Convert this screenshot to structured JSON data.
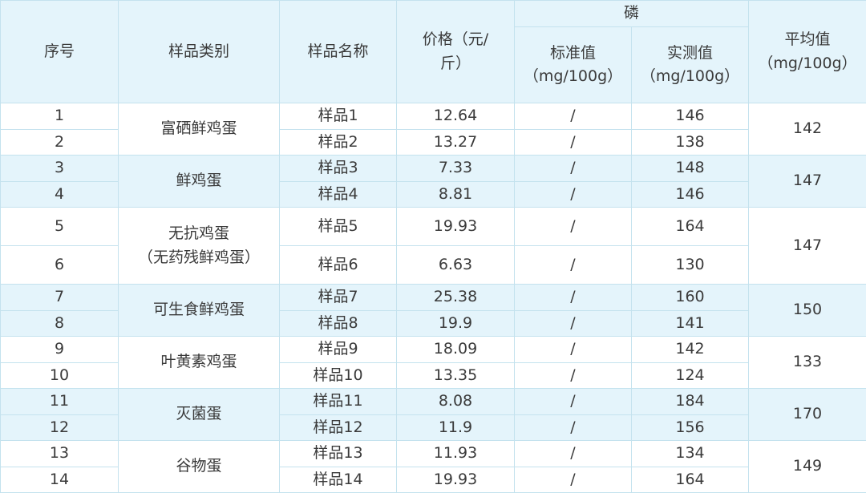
{
  "header": {
    "no": "序号",
    "category": "样品类别",
    "name": "样品名称",
    "price": [
      "价格（元/",
      "斤）"
    ],
    "phosphorus": "磷",
    "standard": [
      "标准值",
      "（mg/100g）"
    ],
    "measured": [
      "实测值",
      "（mg/100g）"
    ],
    "average": [
      "平均值",
      "（mg/100g）"
    ]
  },
  "table": {
    "groups": [
      {
        "category": [
          "富硒鲜鸡蛋"
        ],
        "average": 142,
        "samples": [
          {
            "no": 1,
            "name": "样品1",
            "price": 12.64,
            "standard": "/",
            "measured": 146
          },
          {
            "no": 2,
            "name": "样品2",
            "price": 13.27,
            "standard": "/",
            "measured": 138
          }
        ]
      },
      {
        "category": [
          "鲜鸡蛋"
        ],
        "average": 147,
        "samples": [
          {
            "no": 3,
            "name": "样品3",
            "price": 7.33,
            "standard": "/",
            "measured": 148
          },
          {
            "no": 4,
            "name": "样品4",
            "price": 8.81,
            "standard": "/",
            "measured": 146
          }
        ]
      },
      {
        "category": [
          "无抗鸡蛋",
          "（无药残鲜鸡蛋）"
        ],
        "average": 147,
        "samples": [
          {
            "no": 5,
            "name": "样品5",
            "price": 19.93,
            "standard": "/",
            "measured": 164
          },
          {
            "no": 6,
            "name": "样品6",
            "price": 6.63,
            "standard": "/",
            "measured": 130
          }
        ]
      },
      {
        "category": [
          "可生食鲜鸡蛋"
        ],
        "average": 150,
        "samples": [
          {
            "no": 7,
            "name": "样品7",
            "price": 25.38,
            "standard": "/",
            "measured": 160
          },
          {
            "no": 8,
            "name": "样品8",
            "price": 19.9,
            "standard": "/",
            "measured": 141
          }
        ]
      },
      {
        "category": [
          "叶黄素鸡蛋"
        ],
        "average": 133,
        "samples": [
          {
            "no": 9,
            "name": "样品9",
            "price": 18.09,
            "standard": "/",
            "measured": 142
          },
          {
            "no": 10,
            "name": "样品10",
            "price": 13.35,
            "standard": "/",
            "measured": 124
          }
        ]
      },
      {
        "category": [
          "灭菌蛋"
        ],
        "average": 170,
        "samples": [
          {
            "no": 11,
            "name": "样品11",
            "price": 8.08,
            "standard": "/",
            "measured": 184
          },
          {
            "no": 12,
            "name": "样品12",
            "price": 11.9,
            "standard": "/",
            "measured": 156
          }
        ]
      },
      {
        "category": [
          "谷物蛋"
        ],
        "average": 149,
        "samples": [
          {
            "no": 13,
            "name": "样品13",
            "price": 11.93,
            "standard": "/",
            "measured": 134
          },
          {
            "no": 14,
            "name": "样品14",
            "price": 19.93,
            "standard": "/",
            "measured": 164
          }
        ]
      }
    ]
  }
}
